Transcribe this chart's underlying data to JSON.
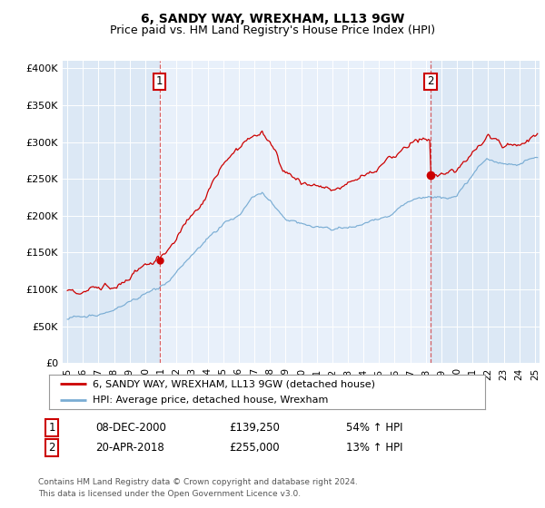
{
  "title": "6, SANDY WAY, WREXHAM, LL13 9GW",
  "subtitle": "Price paid vs. HM Land Registry's House Price Index (HPI)",
  "legend_line1": "6, SANDY WAY, WREXHAM, LL13 9GW (detached house)",
  "legend_line2": "HPI: Average price, detached house, Wrexham",
  "sale1_date": "08-DEC-2000",
  "sale1_price": "£139,250",
  "sale1_hpi": "54% ↑ HPI",
  "sale1_x": 2000.92,
  "sale1_y": 139250,
  "sale2_date": "20-APR-2018",
  "sale2_price": "£255,000",
  "sale2_hpi": "13% ↑ HPI",
  "sale2_x": 2018.3,
  "sale2_y": 255000,
  "footer1": "Contains HM Land Registry data © Crown copyright and database right 2024.",
  "footer2": "This data is licensed under the Open Government Licence v3.0.",
  "ylim": [
    0,
    410000
  ],
  "yticks": [
    0,
    50000,
    100000,
    150000,
    200000,
    250000,
    300000,
    350000,
    400000
  ],
  "ytick_labels": [
    "£0",
    "£50K",
    "£100K",
    "£150K",
    "£200K",
    "£250K",
    "£300K",
    "£350K",
    "£400K"
  ],
  "xlim_start": 1994.7,
  "xlim_end": 2025.3,
  "plot_bg_color": "#dce8f5",
  "highlight_bg_color": "#e8f0fa",
  "red_color": "#cc0000",
  "blue_color": "#7aadd4",
  "title_fontsize": 10,
  "subtitle_fontsize": 9
}
